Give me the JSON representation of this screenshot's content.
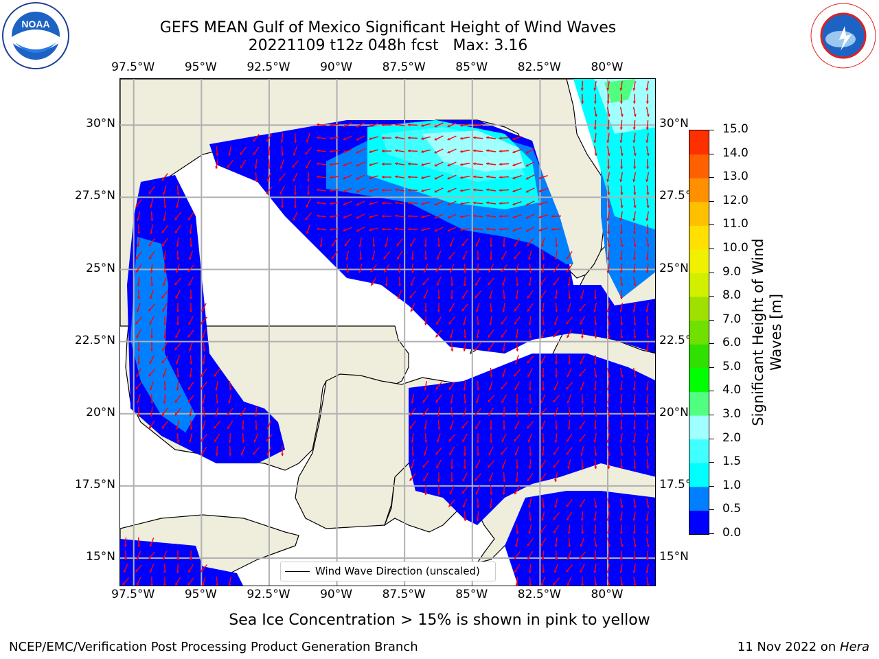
{
  "title": {
    "line1": "GEFS MEAN Gulf of Mexico Significant Height of Wind Waves",
    "line2": "20221109 t12z 048h fcst   Max: 3.16"
  },
  "map": {
    "lon_ticks": [
      "97.5°W",
      "95°W",
      "92.5°W",
      "90°W",
      "87.5°W",
      "85°W",
      "82.5°W",
      "80°W"
    ],
    "lat_ticks_left": [
      "30°N",
      "27.5°N",
      "25°N",
      "22.5°N",
      "20°N",
      "17.5°N",
      "15°N"
    ],
    "lat_ticks_right": [
      "30°N",
      "27.5°N",
      "25°N",
      "22.5°N",
      "20°N",
      "17.5°N",
      "15°N"
    ],
    "lon_range": [
      -98,
      -78.2
    ],
    "lat_range": [
      14,
      31.6
    ],
    "land_color": "#efeddc",
    "ocean_color": "#ffffff",
    "arrow_color": "#ff0000",
    "grid_color": "#b0b0b0",
    "legend_label": "Wind Wave Direction (unscaled)"
  },
  "colorbar": {
    "label": "Significant Height of Wind Waves [m]",
    "label_line1": "Significant Height of Wind",
    "label_line2": "Waves [m]",
    "ticks": [
      "15.0",
      "14.0",
      "13.0",
      "12.0",
      "11.0",
      "10.0",
      "9.0",
      "8.0",
      "7.0",
      "6.0",
      "5.0",
      "4.0",
      "3.0",
      "2.0",
      "1.5",
      "1.0",
      "0.5",
      "0.0"
    ],
    "colors": [
      "#0000ff",
      "#0080ff",
      "#00ffff",
      "#40ffff",
      "#a0ffff",
      "#50ff80",
      "#00ff00",
      "#30e000",
      "#70e000",
      "#a0e000",
      "#d0f000",
      "#f0f000",
      "#ffe000",
      "#ffc000",
      "#ff9000",
      "#ff6000",
      "#ff3000",
      "#ff0000"
    ]
  },
  "subtitle": "Sea Ice Concentration > 15% is shown in pink to yellow",
  "footer": {
    "left": "NCEP/EMC/Verification Post Processing Product Generation Branch",
    "right_date": "11 Nov 2022 on ",
    "right_host": "Hera"
  },
  "logos": {
    "left": "NOAA",
    "right": "NATIONAL WEATHER SERVICE"
  }
}
